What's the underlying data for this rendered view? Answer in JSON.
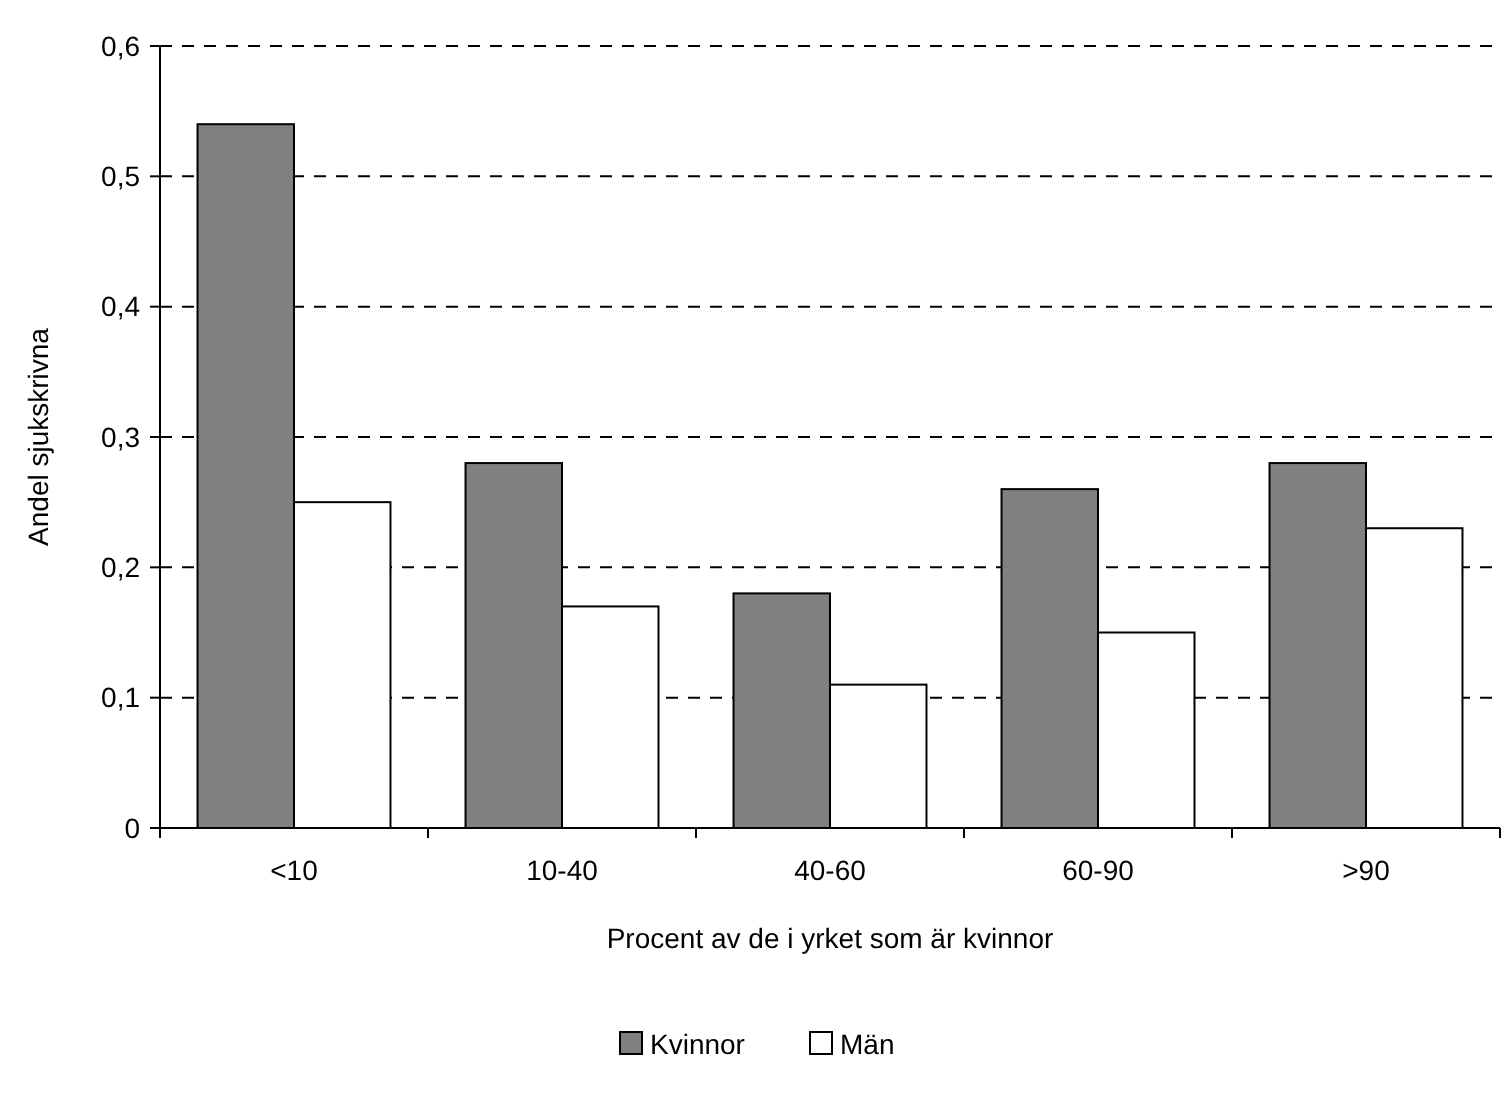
{
  "chart_data": {
    "type": "bar",
    "xlabel": "Procent av de i yrket som är kvinnor",
    "ylabel": "Andel sjukskrivna",
    "categories": [
      "<10",
      "10-40",
      "40-60",
      "60-90",
      ">90"
    ],
    "series": [
      {
        "name": "Kvinnor",
        "color": "#808080",
        "values": [
          0.54,
          0.28,
          0.18,
          0.26,
          0.28
        ]
      },
      {
        "name": "Män",
        "color": "#ffffff",
        "values": [
          0.25,
          0.17,
          0.11,
          0.15,
          0.23
        ]
      }
    ],
    "ylim": [
      0,
      0.6
    ],
    "yticks": [
      0,
      {
        "value": 0.1,
        "label": "0,1"
      },
      {
        "value": 0.2,
        "label": "0,2"
      },
      {
        "value": 0.3,
        "label": "0,3"
      },
      {
        "value": 0.4,
        "label": "0,4"
      },
      {
        "value": 0.5,
        "label": "0,5"
      },
      {
        "value": 0.6,
        "label": "0,6"
      }
    ],
    "grid": "y",
    "legend": "bottom"
  }
}
